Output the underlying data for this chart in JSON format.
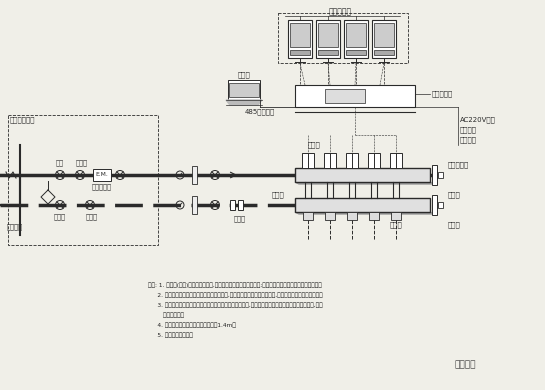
{
  "bg_color": "#f0efe8",
  "line_color": "#2a2a2a",
  "title_text": "室温温控器",
  "hub_label": "集线控制器",
  "computer_label": "计算机",
  "port_label": "485通讯接口",
  "valve_label": "温控阀",
  "collector_label": "集水器",
  "distributor_label": "分水器",
  "joint_label": "活接头",
  "pipe_label": "管道井内部件",
  "valve1_label": "阀门",
  "filter_label": "过滤器",
  "heat_label": "热计量装置",
  "balance_label": "平衡阀",
  "shutoff_label": "锁闭阀",
  "return_label": "回水立管",
  "auto_vent_label": "自动排气阀",
  "drain_label": "泄水阀",
  "ac_label": "AC220V输入",
  "active_label": "有源驱动",
  "passive_label": "无源驱动",
  "note1": "说明: 1. 分环路(分室)控制加装集控盒,增加集中控制与远程控制功能;集控器通讯接口可连接各类网络系统。",
  "note2": "     2. 室温温控器宜设在被控温的房间或区域内,自动调节阀可内置于集水器中,也可外接于集水器各环路上。",
  "note3": "     3. 热水地面辐射供暖分环路控制主要以电动控制方式为主,调节阀宜采用电热式或自力式温度控制阀,也可",
  "note4": "        采用电动阀。",
  "note5": "     4. 温控器的控制器设置离度宜距地面1.4m。",
  "note6": "     5. 可采用无线控制。",
  "watermark": "机电人脉"
}
